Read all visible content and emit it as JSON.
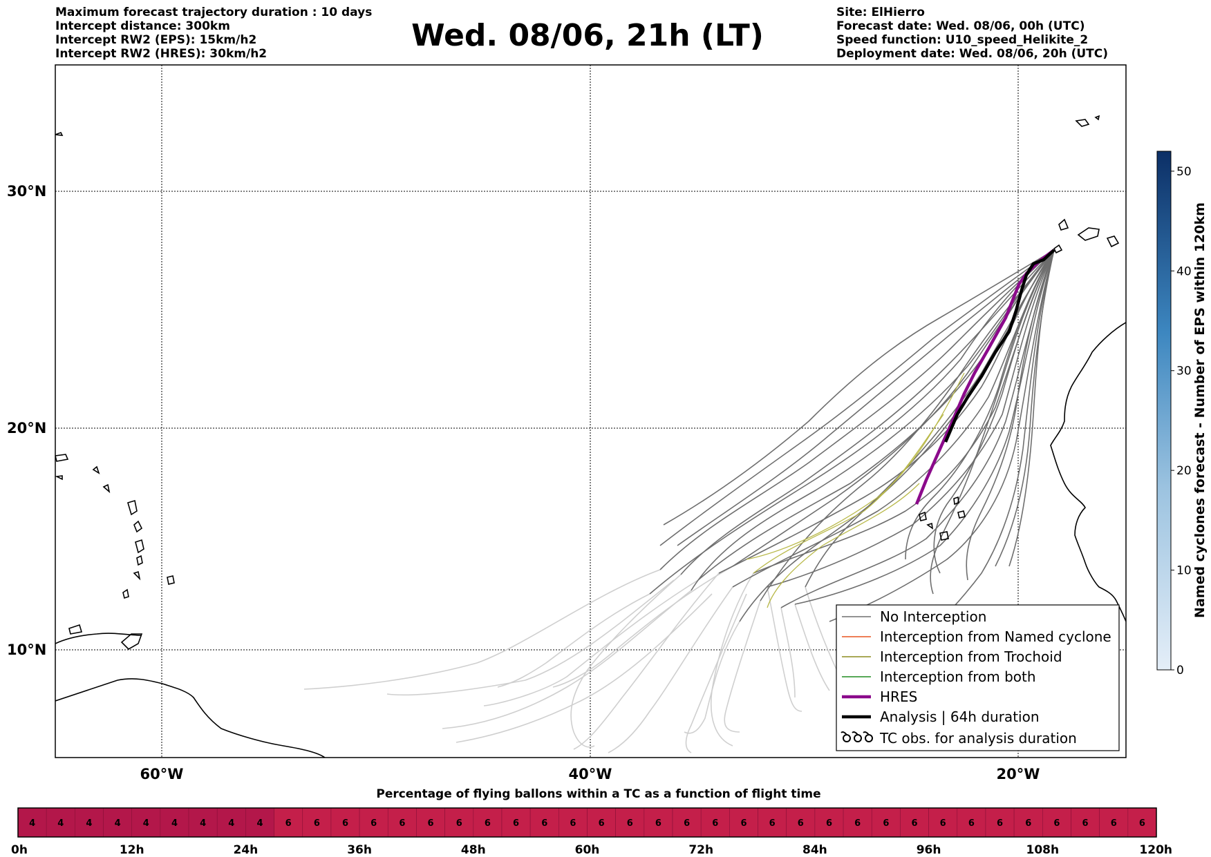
{
  "header": {
    "left": [
      "Maximum forecast trajectory duration : 10 days",
      "Intercept distance: 300km",
      "Intercept RW2 (EPS):  15km/h2",
      "Intercept RW2 (HRES): 30km/h2"
    ],
    "title": "Wed. 08/06, 21h (LT)",
    "right": [
      "Site: ElHierro",
      "Forecast date: Wed. 08/06, 00h (UTC)",
      "Speed function: U10_speed_Helikite_2",
      "Deployment date: Wed. 08/06, 20h (UTC)"
    ]
  },
  "map": {
    "lat_labels": [
      "30°N",
      "20°N",
      "10°N"
    ],
    "lon_labels": [
      "60°W",
      "40°W",
      "20°W"
    ],
    "colors": {
      "no_interception": "#6e6e6e",
      "faded": "#cfcfcf",
      "named_cyclone": "#e8531e",
      "trochoid": "#8c8c1e",
      "both": "#1e8c1e",
      "hres": "#8b0a8b",
      "analysis": "#000000",
      "coast": "#000000"
    }
  },
  "legend": {
    "items": [
      {
        "label": "No Interception",
        "icon": "gray-line"
      },
      {
        "label": "Interception from Named cyclone",
        "icon": "orange-line"
      },
      {
        "label": "Interception from Trochoid",
        "icon": "olive-line"
      },
      {
        "label": "Interception from both",
        "icon": "green-line"
      },
      {
        "label": "HRES",
        "icon": "purple-thick-line"
      },
      {
        "label": "Analysis | 64h duration",
        "icon": "black-thick-line"
      },
      {
        "label": "TC obs. for analysis duration",
        "icon": "cyclone-symbols-icon"
      }
    ]
  },
  "colorbar": {
    "title": "Named cyclones forecast - Number of EPS within 120km",
    "ticks": [
      "0",
      "10",
      "20",
      "30",
      "40",
      "50"
    ],
    "min": 0,
    "max": 52,
    "color_low": "#e4eef8",
    "color_high": "#0c2f66"
  },
  "strip": {
    "title": "Percentage of flying ballons within a TC as a function of flight time",
    "values": [
      4,
      4,
      4,
      4,
      4,
      4,
      4,
      4,
      4,
      6,
      6,
      6,
      6,
      6,
      6,
      6,
      6,
      6,
      6,
      6,
      6,
      6,
      6,
      6,
      6,
      6,
      6,
      6,
      6,
      6,
      6,
      6,
      6,
      6,
      6,
      6,
      6,
      6,
      6,
      6
    ],
    "tick_labels": [
      "0h",
      "12h",
      "24h",
      "36h",
      "48h",
      "60h",
      "72h",
      "84h",
      "96h",
      "108h",
      "120h"
    ],
    "color_4": "#b3174a",
    "color_6": "#c41f4a"
  }
}
